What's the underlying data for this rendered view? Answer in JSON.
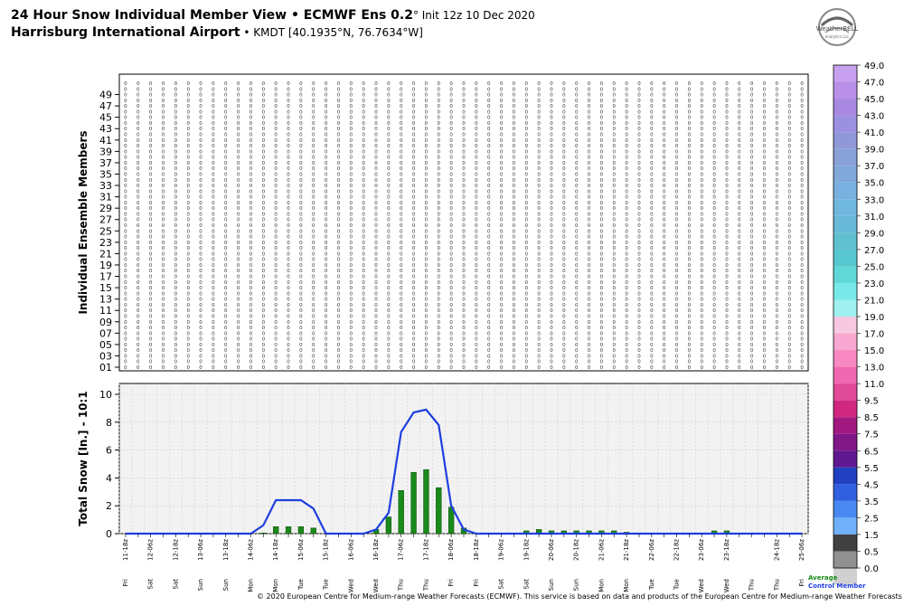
{
  "header": {
    "title_main": "24 Hour Snow Individual Member View • ECMWF Ens 0.2",
    "title_init": "° Init 12z 10 Dec 2020",
    "location_main": "Harrisburg International Airport",
    "location_sub": " • KMDT [40.1935°N, 76.7634°W]",
    "logo_text": "WeatherBELL",
    "logo_sub": "Analytics LLC"
  },
  "footer": "© 2020 European Centre for Medium-range Weather Forecasts (ECMWF). This service is based on data and products of the European Centre for Medium-range Weather Forecasts (ECMWF).",
  "colors": {
    "mean_line": "#1f3fe0",
    "control_bar": "#1a8a1a",
    "bg_plot": "#f2f2f2"
  },
  "members_panel": {
    "ylabel": "Individual Ensemble Members",
    "y_tick_labels": [
      "49",
      "47",
      "45",
      "43",
      "41",
      "39",
      "37",
      "35",
      "33",
      "31",
      "29",
      "27",
      "25",
      "23",
      "21",
      "19",
      "17",
      "15",
      "13",
      "11",
      "09",
      "07",
      "05",
      "03",
      "01"
    ],
    "member_count": 51,
    "value_display": "0"
  },
  "chart_data": {
    "type": "bar",
    "ylabel": "Total Snow [In.] - 10:1",
    "ylim": [
      0,
      10
    ],
    "yticks": [
      0,
      2,
      4,
      6,
      8,
      10
    ],
    "grid": true,
    "categories": [
      "11-18z",
      "12-00z",
      "12-06z",
      "12-12z",
      "12-18z",
      "13-00z",
      "13-06z",
      "13-12z",
      "13-18z",
      "14-00z",
      "14-06z",
      "14-12z",
      "14-18z",
      "15-00z",
      "15-06z",
      "15-12z",
      "15-18z",
      "16-00z",
      "16-06z",
      "16-12z",
      "16-18z",
      "17-00z",
      "17-06z",
      "17-12z",
      "17-18z",
      "18-00z",
      "18-06z",
      "18-12z",
      "18-18z",
      "19-00z",
      "19-06z",
      "19-12z",
      "19-18z",
      "20-00z",
      "20-06z",
      "20-12z",
      "20-18z",
      "21-00z",
      "21-06z",
      "21-12z",
      "21-18z",
      "22-00z",
      "22-06z",
      "22-12z",
      "22-18z",
      "23-00z",
      "23-06z",
      "23-12z",
      "23-18z",
      "24-00z",
      "24-06z",
      "24-12z",
      "24-18z",
      "25-00z",
      "25-06z"
    ],
    "day_labels": [
      "Fri",
      "Sat",
      "Sat",
      "Sat",
      "Sat",
      "Sun",
      "Sun",
      "Sun",
      "Sun",
      "Mon",
      "Mon",
      "Mon",
      "Mon",
      "Tue",
      "Tue",
      "Tue",
      "Tue",
      "Wed",
      "Wed",
      "Wed",
      "Wed",
      "Thu",
      "Thu",
      "Thu",
      "Thu",
      "Fri",
      "Fri",
      "Fri",
      "Fri",
      "Sat",
      "Sat",
      "Sat",
      "Sat",
      "Sun",
      "Sun",
      "Sun",
      "Sun",
      "Mon",
      "Mon",
      "Mon",
      "Mon",
      "Tue",
      "Tue",
      "Tue",
      "Tue",
      "Wed",
      "Wed",
      "Wed",
      "Wed",
      "Thu",
      "Thu",
      "Thu",
      "Thu",
      "Fri",
      "Fri"
    ],
    "x_tick_labels": [
      "11-18z",
      "12-06z",
      "12-18z",
      "13-06z",
      "13-18z",
      "14-06z",
      "14-18z",
      "15-06z",
      "15-18z",
      "16-06z",
      "16-18z",
      "17-06z",
      "17-18z",
      "18-06z",
      "18-18z",
      "19-06z",
      "19-18z",
      "20-06z",
      "20-18z",
      "21-06z",
      "21-18z",
      "22-06z",
      "22-18z",
      "23-06z",
      "23-18z",
      "24-18z",
      "25-06z"
    ],
    "series": [
      {
        "name": "Average",
        "type": "line",
        "values": [
          0,
          0,
          0,
          0,
          0,
          0,
          0,
          0,
          0,
          0,
          0,
          0.6,
          2.4,
          2.4,
          2.4,
          1.8,
          0,
          0,
          0,
          0,
          0.3,
          1.5,
          7.3,
          8.7,
          8.9,
          7.8,
          2.0,
          0.3,
          0,
          0,
          0,
          0,
          0,
          0,
          0,
          0,
          0,
          0,
          0,
          0,
          0,
          0,
          0,
          0,
          0,
          0,
          0,
          0,
          0,
          0,
          0,
          0,
          0,
          0,
          0
        ]
      },
      {
        "name": "Control Member",
        "type": "bar",
        "values": [
          0,
          0,
          0,
          0,
          0,
          0,
          0,
          0,
          0,
          0,
          0,
          0.05,
          0.5,
          0.5,
          0.5,
          0.4,
          0,
          0,
          0,
          0,
          0.3,
          1.2,
          3.1,
          4.4,
          4.6,
          3.3,
          1.9,
          0.4,
          0,
          0,
          0,
          0,
          0.2,
          0.3,
          0.2,
          0.2,
          0.2,
          0.2,
          0.2,
          0.2,
          0.1,
          0,
          0,
          0,
          0,
          0,
          0,
          0.2,
          0.2,
          0,
          0,
          0,
          0,
          0,
          0
        ]
      }
    ],
    "legend": [
      "Average",
      "Control Member"
    ]
  },
  "colorbar": {
    "labels": [
      "49.0",
      "47.0",
      "45.0",
      "43.0",
      "41.0",
      "39.0",
      "37.0",
      "35.0",
      "33.0",
      "31.0",
      "29.0",
      "27.0",
      "25.0",
      "23.0",
      "21.0",
      "19.0",
      "17.0",
      "15.0",
      "13.0",
      "11.0",
      "9.5",
      "8.5",
      "7.5",
      "6.5",
      "5.5",
      "4.5",
      "3.5",
      "2.5",
      "1.5",
      "0.5",
      "0.0"
    ],
    "colors": [
      "#c8a0f0",
      "#b890e8",
      "#a888e0",
      "#9c90e0",
      "#9098d8",
      "#88a0d8",
      "#80a8d8",
      "#78b0e0",
      "#70b8e0",
      "#68b8d8",
      "#60c0d0",
      "#58c8d0",
      "#60d8d8",
      "#78e8e8",
      "#a0f0f0",
      "#f8c8e0",
      "#f8a8d0",
      "#f888c0",
      "#f068b0",
      "#e04898",
      "#d02880",
      "#a01880",
      "#801888",
      "#601890",
      "#2040c0",
      "#3060e0",
      "#4888f0",
      "#70b0f8",
      "#404040",
      "#909090",
      "#d0d0d0"
    ]
  },
  "legend_text": {
    "average": "Average",
    "control": "Control Member"
  }
}
